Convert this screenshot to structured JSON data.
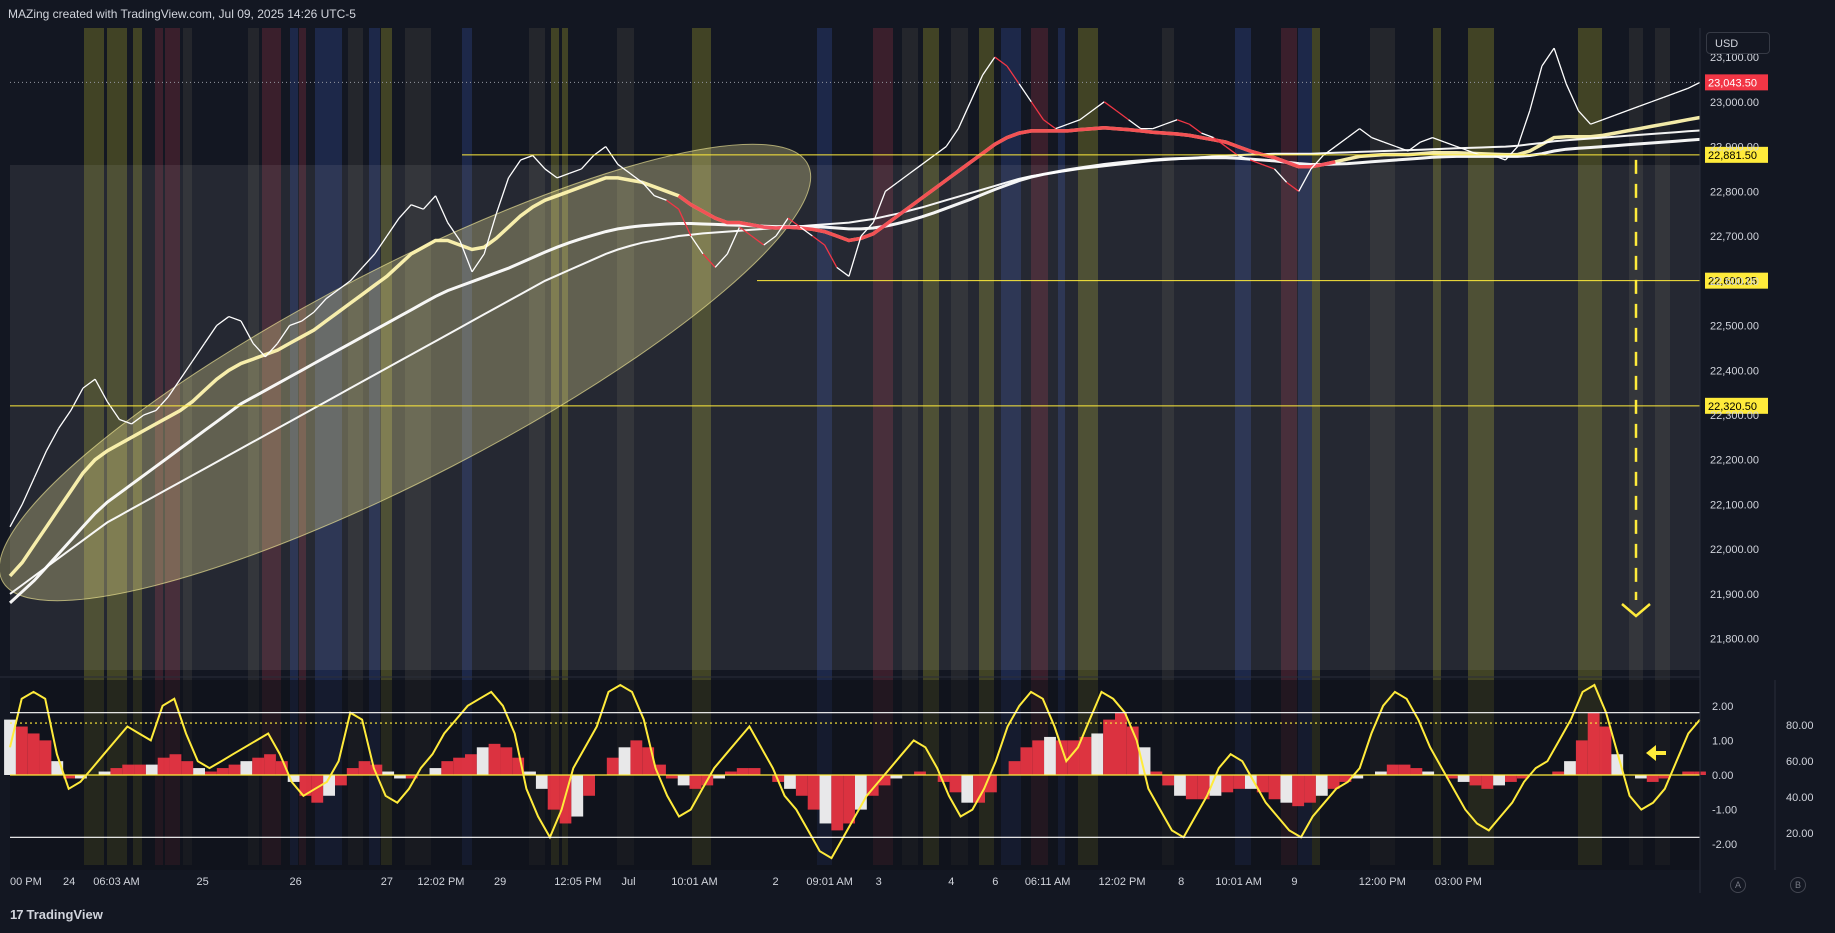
{
  "header": {
    "text": "MAZing created with TradingView.com, Jul 09, 2025 14:26 UTC-5"
  },
  "footer": {
    "brand": "TradingView",
    "logo_glyph": "17"
  },
  "toolbar": {
    "currency": "USD",
    "button_a": "A",
    "button_b": "B"
  },
  "colors": {
    "background": "#131722",
    "price_white": "#ffffff",
    "price_red": "#f23645",
    "ma_yellow": "#fff5b0",
    "level_line": "#ffeb3b",
    "current_price_tag": "#f23645",
    "level_tag": "#ffeb3b",
    "band_yellow": "#7a7a2a",
    "band_blue": "#2a3f7a",
    "band_red": "#6a2a3a",
    "oscillator_yellow": "#ffeb3b",
    "histogram_red": "#f23645",
    "histogram_white": "#ffffff"
  },
  "chart_data": [
    {
      "type": "line",
      "panel": "price",
      "currency": "USD",
      "x_ticks": [
        "00 PM",
        "24",
        "06:03 AM",
        "25",
        "26",
        "27",
        "12:02 PM",
        "29",
        "12:05 PM",
        "Jul",
        "10:01 AM",
        "2",
        "09:01 AM",
        "3",
        "4",
        "6",
        "06:11 AM",
        "12:02 PM",
        "8",
        "10:01 AM",
        "9",
        "12:00 PM",
        "03:00 PM"
      ],
      "y_ticks": [
        "23,100.00",
        "23,000.00",
        "22,900.00",
        "22,800.00",
        "22,700.00",
        "22,600.00",
        "22,500.00",
        "22,400.00",
        "22,300.00",
        "22,200.00",
        "22,100.00",
        "22,000.00",
        "21,900.00",
        "21,800.00"
      ],
      "y_tick_values": [
        23100,
        23000,
        22900,
        22800,
        22700,
        22600,
        22500,
        22400,
        22300,
        22200,
        22100,
        22000,
        21900,
        21800
      ],
      "ylim": [
        21730,
        23165
      ],
      "bar_count": 140,
      "price_labels": [
        {
          "text": "23,043.50",
          "value": 23043.5,
          "kind": "current"
        },
        {
          "text": "22,881.50",
          "value": 22881.5,
          "kind": "level"
        },
        {
          "text": "22,600.25",
          "value": 22600.25,
          "kind": "level"
        },
        {
          "text": "22,320.50",
          "value": 22320.5,
          "kind": "level"
        }
      ],
      "series": [
        {
          "values": [
            22050,
            22100,
            22160,
            22220,
            22270,
            22310,
            22360,
            22380,
            22330,
            22290,
            22280,
            22300,
            22310,
            22340,
            22380,
            22420,
            22460,
            22500,
            22520,
            22510,
            22460,
            22430,
            22460,
            22500,
            22510,
            22530,
            22560,
            22580,
            22600,
            22630,
            22660,
            22700,
            22740,
            22770,
            22760,
            22790,
            22730,
            22690,
            22620,
            22660,
            22750,
            22830,
            22870,
            22880,
            22850,
            22830,
            22840,
            22850,
            22880,
            22900,
            22860,
            22840,
            22820,
            22790,
            22780,
            22760,
            22700,
            22660,
            22630,
            22660,
            22720,
            22700,
            22680,
            22700,
            22740,
            22720,
            22700,
            22680,
            22630,
            22610,
            22700,
            22730,
            22800,
            22820,
            22840,
            22860,
            22880,
            22900,
            22940,
            23000,
            23060,
            23100,
            23080,
            23040,
            23000,
            22960,
            22940,
            22950,
            22960,
            22980,
            23000,
            22980,
            22960,
            22940,
            22940,
            22950,
            22960,
            22950,
            22930,
            22920,
            22900,
            22880,
            22870,
            22860,
            22850,
            22820,
            22800,
            22850,
            22880,
            22900,
            22920,
            22940,
            22920,
            22910,
            22900,
            22890,
            22910,
            22920,
            22910,
            22900,
            22890,
            22880,
            22880,
            22870,
            22900,
            22980,
            23080,
            23120,
            23040,
            22980,
            22950,
            22960,
            22970,
            22980,
            22990,
            23000,
            23010,
            23020,
            23030,
            23043.5
          ]
        },
        {
          "values": [
            21940,
            21970,
            22010,
            22050,
            22090,
            22130,
            22170,
            22200,
            22220,
            22235,
            22250,
            22265,
            22280,
            22295,
            22310,
            22330,
            22355,
            22380,
            22400,
            22415,
            22425,
            22435,
            22445,
            22460,
            22475,
            22490,
            22510,
            22530,
            22550,
            22570,
            22590,
            22610,
            22635,
            22660,
            22675,
            22690,
            22690,
            22680,
            22670,
            22675,
            22695,
            22720,
            22745,
            22765,
            22780,
            22790,
            22800,
            22810,
            22820,
            22830,
            22830,
            22825,
            22820,
            22810,
            22800,
            22790,
            22770,
            22755,
            22740,
            22730,
            22730,
            22725,
            22720,
            22718,
            22720,
            22718,
            22715,
            22710,
            22700,
            22690,
            22695,
            22705,
            22725,
            22745,
            22765,
            22785,
            22805,
            22825,
            22845,
            22865,
            22885,
            22905,
            22920,
            22930,
            22935,
            22935,
            22935,
            22935,
            22938,
            22940,
            22942,
            22940,
            22938,
            22935,
            22932,
            22930,
            22928,
            22925,
            22920,
            22915,
            22910,
            22900,
            22890,
            22882,
            22875,
            22865,
            22855,
            22855,
            22860,
            22866,
            22872,
            22878,
            22880,
            22882,
            22882,
            22882,
            22884,
            22886,
            22886,
            22886,
            22885,
            22884,
            22883,
            22882,
            22882,
            22890,
            22905,
            22920,
            22922,
            22922,
            22922,
            22925,
            22930,
            22935,
            22940,
            22945,
            22950,
            22955,
            22960,
            22965
          ]
        },
        {
          "values": [
            21880,
            21905,
            21930,
            21960,
            21990,
            22020,
            22050,
            22080,
            22105,
            22125,
            22145,
            22165,
            22185,
            22205,
            22225,
            22245,
            22265,
            22285,
            22305,
            22325,
            22340,
            22355,
            22370,
            22385,
            22400,
            22415,
            22430,
            22445,
            22460,
            22475,
            22490,
            22505,
            22520,
            22535,
            22550,
            22565,
            22578,
            22588,
            22598,
            22608,
            22618,
            22628,
            22640,
            22652,
            22664,
            22675,
            22685,
            22694,
            22702,
            22710,
            22716,
            22720,
            22723,
            22725,
            22727,
            22728,
            22728,
            22727,
            22726,
            22725,
            22724,
            22723,
            22722,
            22721,
            22721,
            22721,
            22721,
            22720,
            22718,
            22716,
            22716,
            22718,
            22722,
            22728,
            22735,
            22743,
            22752,
            22762,
            22772,
            22782,
            22793,
            22804,
            22814,
            22824,
            22832,
            22838,
            22843,
            22848,
            22852,
            22856,
            22860,
            22863,
            22866,
            22868,
            22870,
            22872,
            22873,
            22874,
            22875,
            22875,
            22875,
            22874,
            22872,
            22870,
            22868,
            22865,
            22862,
            22860,
            22860,
            22861,
            22862,
            22864,
            22866,
            22868,
            22870,
            22872,
            22874,
            22876,
            22877,
            22878,
            22878,
            22878,
            22878,
            22878,
            22878,
            22880,
            22884,
            22890,
            22894,
            22896,
            22898,
            22900,
            22902,
            22904,
            22906,
            22908,
            22910,
            22912,
            22914,
            22916
          ]
        },
        {
          "values": [
            21900,
            21920,
            21940,
            21960,
            21980,
            22000,
            22020,
            22040,
            22060,
            22075,
            22090,
            22105,
            22120,
            22135,
            22150,
            22165,
            22180,
            22195,
            22210,
            22225,
            22240,
            22255,
            22270,
            22285,
            22300,
            22315,
            22330,
            22345,
            22360,
            22375,
            22390,
            22405,
            22420,
            22435,
            22450,
            22465,
            22480,
            22495,
            22510,
            22525,
            22540,
            22555,
            22570,
            22585,
            22600,
            22612,
            22624,
            22636,
            22648,
            22660,
            22670,
            22678,
            22685,
            22690,
            22695,
            22700,
            22703,
            22706,
            22708,
            22710,
            22712,
            22714,
            22716,
            22718,
            22720,
            22722,
            22724,
            22726,
            22728,
            22730,
            22734,
            22738,
            22744,
            22750,
            22757,
            22764,
            22772,
            22780,
            22788,
            22796,
            22804,
            22812,
            22820,
            22828,
            22834,
            22838,
            22842,
            22846,
            22850,
            22853,
            22856,
            22859,
            22862,
            22865,
            22868,
            22870,
            22872,
            22874,
            22876,
            22878,
            22880,
            22881,
            22882,
            22883,
            22884,
            22884,
            22884,
            22884,
            22885,
            22886,
            22887,
            22888,
            22889,
            22890,
            22891,
            22892,
            22893,
            22894,
            22895,
            22896,
            22897,
            22898,
            22899,
            22900,
            22902,
            22905,
            22908,
            22912,
            22914,
            22916,
            22918,
            22920,
            22922,
            22924,
            22926,
            22928,
            22930,
            22932,
            22934,
            22936
          ]
        }
      ]
    },
    {
      "type": "area",
      "panel": "oscillator",
      "y_ticks": [
        "2.00",
        "1.00",
        "0.00",
        "-1.00",
        "-2.00"
      ],
      "y_tick_values": [
        2,
        1,
        0,
        -1,
        -2
      ],
      "right_ticks": [
        "80.00",
        "60.00",
        "40.00",
        "20.00"
      ],
      "right_tick_values": [
        80,
        60,
        40,
        20
      ],
      "ylim": [
        -2.6,
        2.6
      ],
      "series": [
        {
          "values": [
            0.8,
            2.2,
            2.4,
            2.2,
            0.6,
            -0.4,
            -0.2,
            0.2,
            0.6,
            1.0,
            1.4,
            1.2,
            1.0,
            2.0,
            2.2,
            1.2,
            0.4,
            0.2,
            0.4,
            0.6,
            0.8,
            1.0,
            1.2,
            0.6,
            -0.2,
            -0.6,
            -0.4,
            -0.2,
            0.4,
            1.8,
            1.6,
            0.2,
            -0.6,
            -0.8,
            -0.4,
            0.2,
            0.6,
            1.2,
            1.6,
            2.0,
            2.2,
            2.4,
            2.0,
            1.2,
            -0.4,
            -1.2,
            -1.8,
            -1.0,
            0.2,
            0.8,
            1.4,
            2.4,
            2.6,
            2.4,
            1.6,
            0.2,
            -0.6,
            -1.2,
            -1.0,
            -0.4,
            0.2,
            0.6,
            1.0,
            1.4,
            0.8,
            0.2,
            -0.6,
            -1.0,
            -1.6,
            -2.2,
            -2.4,
            -1.8,
            -1.2,
            -0.6,
            -0.2,
            0.2,
            0.6,
            1.0,
            0.8,
            0.2,
            -0.6,
            -1.2,
            -1.0,
            -0.4,
            0.4,
            1.4,
            2.0,
            2.4,
            2.2,
            1.4,
            0.4,
            0.8,
            1.6,
            2.4,
            2.2,
            1.8,
            1.0,
            -0.4,
            -1.0,
            -1.6,
            -1.8,
            -1.2,
            -0.6,
            0.2,
            0.6,
            0.4,
            -0.2,
            -0.8,
            -1.2,
            -1.6,
            -1.8,
            -1.2,
            -0.8,
            -0.4,
            -0.2,
            0.2,
            1.2,
            2.0,
            2.4,
            2.2,
            1.6,
            0.8,
            0.2,
            -0.4,
            -1.0,
            -1.4,
            -1.6,
            -1.2,
            -0.8,
            -0.2,
            0.2,
            0.4,
            1.0,
            1.6,
            2.4,
            2.6,
            1.8,
            0.6,
            -0.6,
            -1.0,
            -0.8,
            -0.4,
            0.4,
            1.2,
            1.6
          ]
        },
        {
          "values": [
            1.6,
            1.4,
            1.2,
            1.0,
            0.4,
            -0.1,
            -0.1,
            0.0,
            0.1,
            0.2,
            0.3,
            0.3,
            0.3,
            0.5,
            0.6,
            0.4,
            0.2,
            0.1,
            0.2,
            0.3,
            0.4,
            0.5,
            0.6,
            0.4,
            -0.2,
            -0.6,
            -0.8,
            -0.6,
            -0.3,
            0.2,
            0.4,
            0.3,
            0.1,
            -0.1,
            -0.1,
            0.0,
            0.2,
            0.4,
            0.5,
            0.6,
            0.8,
            0.9,
            0.8,
            0.5,
            0.1,
            -0.4,
            -1.0,
            -1.4,
            -1.2,
            -0.6,
            0.0,
            0.5,
            0.8,
            1.0,
            0.8,
            0.3,
            -0.1,
            -0.3,
            -0.4,
            -0.3,
            -0.1,
            0.1,
            0.2,
            0.2,
            0.0,
            -0.2,
            -0.4,
            -0.6,
            -1.0,
            -1.4,
            -1.6,
            -1.4,
            -1.0,
            -0.6,
            -0.3,
            -0.1,
            0.0,
            0.1,
            0.0,
            -0.2,
            -0.5,
            -0.8,
            -0.8,
            -0.5,
            0.0,
            0.4,
            0.8,
            1.0,
            1.1,
            1.0,
            1.0,
            1.1,
            1.2,
            1.6,
            1.8,
            1.4,
            0.8,
            0.1,
            -0.3,
            -0.6,
            -0.7,
            -0.7,
            -0.6,
            -0.5,
            -0.4,
            -0.4,
            -0.5,
            -0.7,
            -0.8,
            -0.9,
            -0.8,
            -0.6,
            -0.4,
            -0.2,
            -0.1,
            0.0,
            0.1,
            0.3,
            0.3,
            0.2,
            0.1,
            0.0,
            -0.1,
            -0.2,
            -0.3,
            -0.4,
            -0.3,
            -0.2,
            -0.1,
            0.0,
            0.0,
            0.1,
            0.4,
            1.0,
            1.8,
            1.4,
            0.6,
            0.0,
            -0.1,
            -0.2,
            -0.1,
            0.0,
            0.1,
            0.1
          ]
        }
      ],
      "reference_lines": [
        1.8,
        1.5,
        0.0,
        -1.8
      ]
    }
  ]
}
